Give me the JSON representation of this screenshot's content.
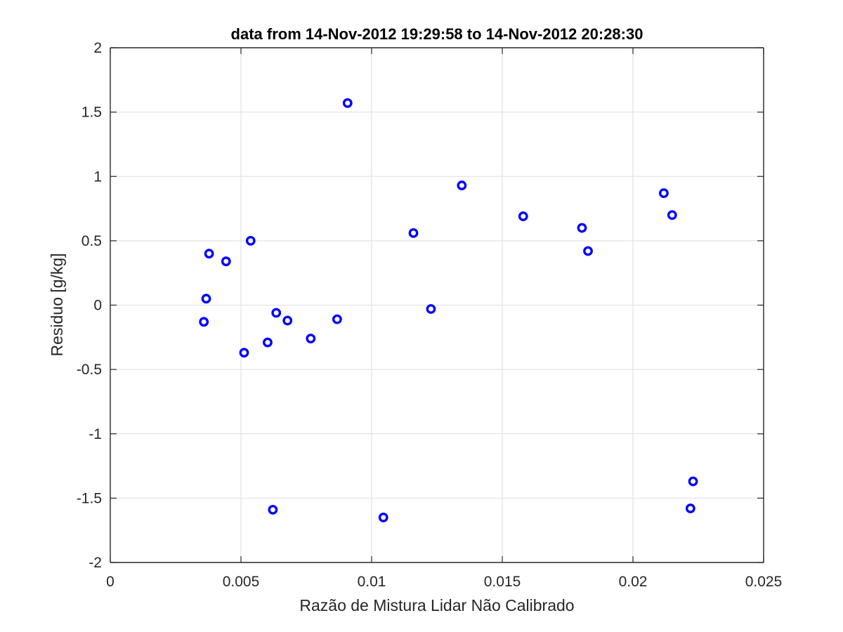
{
  "chart_data": {
    "type": "scatter",
    "title": "data from 14-Nov-2012 19:29:58 to 14-Nov-2012 20:28:30",
    "xlabel": "Razão de Mistura Lidar Não Calibrado",
    "ylabel": "Residuo [g/kg]",
    "xlim": [
      0,
      0.025
    ],
    "ylim": [
      -2,
      2
    ],
    "xticks": [
      0,
      0.005,
      0.01,
      0.015,
      0.02,
      0.025
    ],
    "xtick_labels": [
      "0",
      "0.005",
      "0.01",
      "0.015",
      "0.02",
      "0.025"
    ],
    "yticks": [
      2,
      1.5,
      1,
      0.5,
      0,
      -0.5,
      -1,
      -1.5,
      -2
    ],
    "ytick_labels": [
      "2",
      "1.5",
      "1",
      "0.5",
      "0",
      "-0.5",
      "-1",
      "-1.5",
      "-2"
    ],
    "grid": true,
    "marker": "circle",
    "marker_color": "#0000ff",
    "points": [
      {
        "x": 0.00358,
        "y": -0.13
      },
      {
        "x": 0.00367,
        "y": 0.05
      },
      {
        "x": 0.00378,
        "y": 0.4
      },
      {
        "x": 0.00443,
        "y": 0.34
      },
      {
        "x": 0.00512,
        "y": -0.37
      },
      {
        "x": 0.00537,
        "y": 0.5
      },
      {
        "x": 0.00602,
        "y": -0.29
      },
      {
        "x": 0.00622,
        "y": -1.59
      },
      {
        "x": 0.00635,
        "y": -0.06
      },
      {
        "x": 0.00678,
        "y": -0.12
      },
      {
        "x": 0.00767,
        "y": -0.26
      },
      {
        "x": 0.00868,
        "y": -0.11
      },
      {
        "x": 0.00908,
        "y": 1.57
      },
      {
        "x": 0.01045,
        "y": -1.65
      },
      {
        "x": 0.0116,
        "y": 0.56
      },
      {
        "x": 0.01227,
        "y": -0.03
      },
      {
        "x": 0.01345,
        "y": 0.93
      },
      {
        "x": 0.0158,
        "y": 0.69
      },
      {
        "x": 0.01805,
        "y": 0.6
      },
      {
        "x": 0.01828,
        "y": 0.42
      },
      {
        "x": 0.02118,
        "y": 0.87
      },
      {
        "x": 0.0215,
        "y": 0.7
      },
      {
        "x": 0.0222,
        "y": -1.58
      },
      {
        "x": 0.0223,
        "y": -1.37
      }
    ]
  }
}
